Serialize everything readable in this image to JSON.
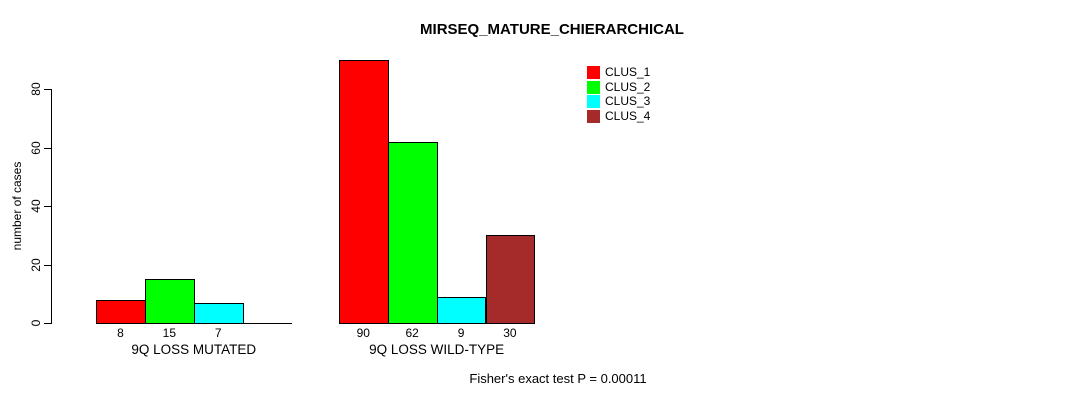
{
  "chart_data": {
    "type": "bar",
    "title": "MIRSEQ_MATURE_CHIERARCHICAL",
    "ylabel": "number of cases",
    "xlabel": "",
    "annotation": "Fisher's exact test P = 0.00011",
    "ylim": [
      0,
      90
    ],
    "yticks": [
      0,
      20,
      40,
      60,
      80
    ],
    "grid": "off",
    "legend_position": "top-right",
    "categories": [
      "9Q LOSS MUTATED",
      "9Q LOSS WILD-TYPE"
    ],
    "series": [
      {
        "name": "CLUS_1",
        "color": "#ff0000",
        "values": [
          8,
          90
        ]
      },
      {
        "name": "CLUS_2",
        "color": "#00ff00",
        "values": [
          15,
          62
        ]
      },
      {
        "name": "CLUS_3",
        "color": "#00ffff",
        "values": [
          7,
          9
        ]
      },
      {
        "name": "CLUS_4",
        "color": "#a52a2a",
        "values": [
          0,
          30
        ]
      }
    ],
    "bar_value_labels": [
      [
        "8",
        "15",
        "7",
        ""
      ],
      [
        "90",
        "62",
        "9",
        "30"
      ]
    ]
  }
}
